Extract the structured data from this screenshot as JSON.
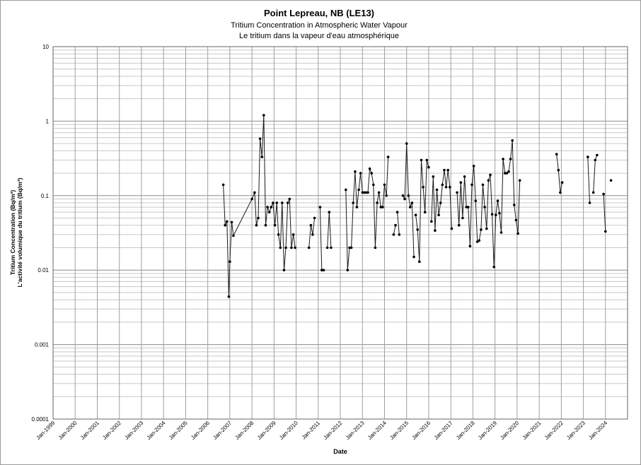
{
  "chart_data": {
    "type": "line",
    "title": "Point Lepreau, NB (LE13)",
    "subtitle_en": "Tritium Concentration in Atmospheric Water Vapour",
    "subtitle_fr": "Le tritium dans la vapeur d'eau atmosphérique",
    "xlabel": "Date",
    "ylabel_en": "Tritium Concentration (Bq/m³)",
    "ylabel_fr": "L'activité volumique du tritium (Bq/m³)",
    "y_scale": "log",
    "ylim": [
      0.0001,
      10
    ],
    "xlim": [
      "1999-01-01",
      "2024-12-31"
    ],
    "grid": true,
    "y_ticks": [
      "10",
      "1",
      "0.1",
      "0.01",
      "0.001",
      "0.0001"
    ],
    "x_ticks": [
      "Jan-1999",
      "Jan-2000",
      "Jan-2001",
      "Jan-2002",
      "Jan-2003",
      "Jan-2004",
      "Jan-2005",
      "Jan-2006",
      "Jan-2007",
      "Jan-2008",
      "Jan-2009",
      "Jan-2010",
      "Jan-2011",
      "Jan-2012",
      "Jan-2013",
      "Jan-2014",
      "Jan-2015",
      "Jan-2016",
      "Jan-2017",
      "Jan-2018",
      "Jan-2019",
      "Jan-2020",
      "Jan-2021",
      "Jan-2022",
      "Jan-2023",
      "Jan-2024"
    ],
    "series": [
      {
        "segments": [
          [
            [
              "2006-09-15",
              0.14
            ],
            [
              "2006-10-15",
              0.04
            ],
            [
              "2006-11-15",
              0.045
            ],
            [
              "2006-12-15",
              0.0044
            ],
            [
              "2007-01-01",
              0.013
            ],
            [
              "2007-02-01",
              0.044
            ],
            [
              "2007-03-01",
              0.029
            ],
            [
              "2008-01-01",
              0.09
            ],
            [
              "2008-02-15",
              0.11
            ],
            [
              "2008-03-15",
              0.04
            ],
            [
              "2008-04-15",
              0.05
            ],
            [
              "2008-05-15",
              0.58
            ],
            [
              "2008-06-15",
              0.33
            ],
            [
              "2008-07-15",
              1.2
            ],
            [
              "2008-08-15",
              0.04
            ],
            [
              "2008-09-15",
              0.07
            ],
            [
              "2008-10-15",
              0.06
            ],
            [
              "2008-11-15",
              0.07
            ],
            [
              "2008-12-15",
              0.08
            ],
            [
              "2009-01-15",
              0.04
            ],
            [
              "2009-02-15",
              0.08
            ],
            [
              "2009-03-15",
              0.03
            ],
            [
              "2009-04-15",
              0.02
            ],
            [
              "2009-05-15",
              0.08
            ],
            [
              "2009-06-15",
              0.01
            ],
            [
              "2009-07-15",
              0.02
            ],
            [
              "2009-08-15",
              0.08
            ],
            [
              "2009-09-15",
              0.09
            ],
            [
              "2009-10-15",
              0.02
            ],
            [
              "2009-11-15",
              0.03
            ],
            [
              "2009-12-15",
              0.02
            ]
          ],
          [
            [
              "2010-08-01",
              0.02
            ],
            [
              "2010-09-01",
              0.04
            ],
            [
              "2010-10-01",
              0.03
            ],
            [
              "2010-11-01",
              0.05
            ]
          ],
          [
            [
              "2011-02-01",
              0.07
            ],
            [
              "2011-03-01",
              0.01
            ],
            [
              "2011-04-01",
              0.01
            ]
          ],
          [
            [
              "2011-06-01",
              0.02
            ],
            [
              "2011-07-01",
              0.06
            ],
            [
              "2011-08-01",
              0.02
            ]
          ],
          [
            [
              "2012-04-01",
              0.12
            ],
            [
              "2012-05-01",
              0.01
            ],
            [
              "2012-06-01",
              0.02
            ],
            [
              "2012-07-01",
              0.02
            ],
            [
              "2012-08-01",
              0.08
            ],
            [
              "2012-09-01",
              0.21
            ],
            [
              "2012-10-01",
              0.07
            ],
            [
              "2012-11-01",
              0.12
            ],
            [
              "2012-12-01",
              0.2
            ],
            [
              "2013-01-01",
              0.11
            ],
            [
              "2013-02-01",
              0.11
            ],
            [
              "2013-03-01",
              0.11
            ],
            [
              "2013-04-01",
              0.11
            ],
            [
              "2013-05-01",
              0.23
            ],
            [
              "2013-06-01",
              0.2
            ],
            [
              "2013-07-01",
              0.14
            ],
            [
              "2013-08-01",
              0.02
            ],
            [
              "2013-09-01",
              0.08
            ],
            [
              "2013-10-01",
              0.11
            ],
            [
              "2013-11-01",
              0.07
            ],
            [
              "2013-12-01",
              0.07
            ],
            [
              "2014-01-01",
              0.14
            ],
            [
              "2014-02-01",
              0.1
            ],
            [
              "2014-03-01",
              0.33
            ]
          ],
          [
            [
              "2014-06-01",
              0.03
            ],
            [
              "2014-07-01",
              0.04
            ]
          ],
          [
            [
              "2014-08-01",
              0.06
            ],
            [
              "2014-09-01",
              0.03
            ]
          ],
          [
            [
              "2014-11-01",
              0.1
            ],
            [
              "2014-12-01",
              0.09
            ],
            [
              "2015-01-01",
              0.5
            ],
            [
              "2015-02-01",
              0.1
            ],
            [
              "2015-03-01",
              0.07
            ],
            [
              "2015-04-01",
              0.08
            ],
            [
              "2015-05-01",
              0.015
            ]
          ],
          [
            [
              "2015-06-01",
              0.055
            ],
            [
              "2015-07-01",
              0.035
            ],
            [
              "2015-08-01",
              0.013
            ],
            [
              "2015-09-01",
              0.3
            ],
            [
              "2015-10-01",
              0.13
            ],
            [
              "2015-11-01",
              0.06
            ],
            [
              "2015-12-01",
              0.3
            ],
            [
              "2016-01-01",
              0.24
            ]
          ],
          [
            [
              "2016-02-15",
              0.045
            ],
            [
              "2016-03-15",
              0.18
            ],
            [
              "2016-04-15",
              0.034
            ],
            [
              "2016-05-15",
              0.12
            ],
            [
              "2016-06-15",
              0.055
            ],
            [
              "2016-07-15",
              0.08
            ],
            [
              "2016-08-15",
              0.14
            ],
            [
              "2016-09-15",
              0.22
            ],
            [
              "2016-10-15",
              0.13
            ],
            [
              "2016-11-15",
              0.22
            ],
            [
              "2016-12-15",
              0.13
            ],
            [
              "2017-01-15",
              0.036
            ]
          ],
          [
            [
              "2017-04-15",
              0.11
            ],
            [
              "2017-05-15",
              0.04
            ],
            [
              "2017-06-15",
              0.15
            ],
            [
              "2017-07-15",
              0.05
            ],
            [
              "2017-08-15",
              0.18
            ],
            [
              "2017-09-15",
              0.07
            ],
            [
              "2017-10-15",
              0.07
            ],
            [
              "2017-11-15",
              0.021
            ],
            [
              "2017-12-15",
              0.14
            ],
            [
              "2018-01-15",
              0.25
            ],
            [
              "2018-02-15",
              0.085
            ],
            [
              "2018-03-15",
              0.024
            ],
            [
              "2018-04-15",
              0.025
            ],
            [
              "2018-05-15",
              0.035
            ],
            [
              "2018-06-15",
              0.14
            ],
            [
              "2018-07-15",
              0.07
            ],
            [
              "2018-08-15",
              0.036
            ],
            [
              "2018-09-15",
              0.16
            ],
            [
              "2018-10-15",
              0.19
            ],
            [
              "2018-11-15",
              0.056
            ],
            [
              "2018-12-15",
              0.011
            ],
            [
              "2019-01-15",
              0.055
            ],
            [
              "2019-02-15",
              0.085
            ],
            [
              "2019-03-15",
              0.058
            ],
            [
              "2019-04-15",
              0.032
            ],
            [
              "2019-05-15",
              0.31
            ],
            [
              "2019-06-15",
              0.2
            ],
            [
              "2019-07-15",
              0.2
            ],
            [
              "2019-08-15",
              0.21
            ],
            [
              "2019-09-15",
              0.31
            ],
            [
              "2019-10-15",
              0.55
            ],
            [
              "2019-11-15",
              0.075
            ],
            [
              "2019-12-15",
              0.047
            ],
            [
              "2020-01-15",
              0.031
            ],
            [
              "2020-02-15",
              0.16
            ]
          ],
          [
            [
              "2021-10-15",
              0.36
            ],
            [
              "2021-11-15",
              0.22
            ],
            [
              "2021-12-15",
              0.11
            ],
            [
              "2022-01-15",
              0.15
            ]
          ],
          [
            [
              "2023-03-15",
              0.33
            ],
            [
              "2023-04-15",
              0.08
            ]
          ],
          [
            [
              "2023-06-15",
              0.11
            ],
            [
              "2023-07-15",
              0.3
            ],
            [
              "2023-08-15",
              0.35
            ]
          ],
          [
            [
              "2023-12-01",
              0.105
            ],
            [
              "2024-01-01",
              0.033
            ]
          ],
          [
            [
              "2024-04-01",
              0.16
            ]
          ]
        ]
      }
    ]
  }
}
